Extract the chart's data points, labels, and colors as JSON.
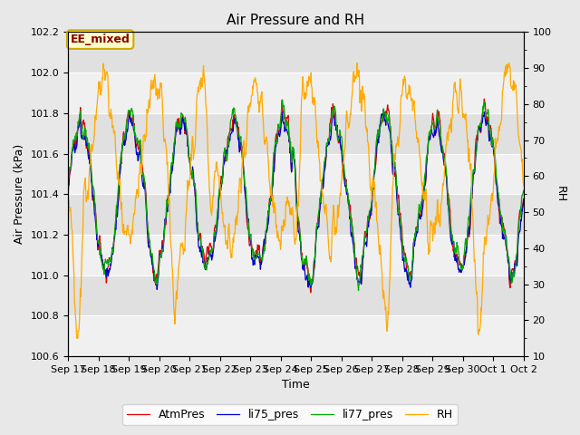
{
  "title": "Air Pressure and RH",
  "xlabel": "Time",
  "ylabel_left": "Air Pressure (kPa)",
  "ylabel_right": "RH",
  "annotation": "EE_mixed",
  "ylim_left": [
    100.6,
    102.2
  ],
  "ylim_right": [
    10,
    100
  ],
  "yticks_left": [
    100.6,
    100.8,
    101.0,
    101.2,
    101.4,
    101.6,
    101.8,
    102.0,
    102.2
  ],
  "yticks_right": [
    10,
    20,
    30,
    40,
    50,
    60,
    70,
    80,
    90,
    100
  ],
  "xtick_labels": [
    "Sep 17",
    "Sep 18",
    "Sep 19",
    "Sep 20",
    "Sep 21",
    "Sep 22",
    "Sep 23",
    "Sep 24",
    "Sep 25",
    "Sep 26",
    "Sep 27",
    "Sep 28",
    "Sep 29",
    "Sep 30",
    "Oct 1",
    "Oct 2"
  ],
  "legend_labels": [
    "AtmPres",
    "li75_pres",
    "li77_pres",
    "RH"
  ],
  "line_colors": [
    "#dd0000",
    "#0000cc",
    "#00aa00",
    "#ffaa00"
  ],
  "fig_bg_color": "#e8e8e8",
  "plot_bg_light": "#f0f0f0",
  "plot_bg_dark": "#e0e0e0",
  "seed": 42,
  "n_points": 1000
}
